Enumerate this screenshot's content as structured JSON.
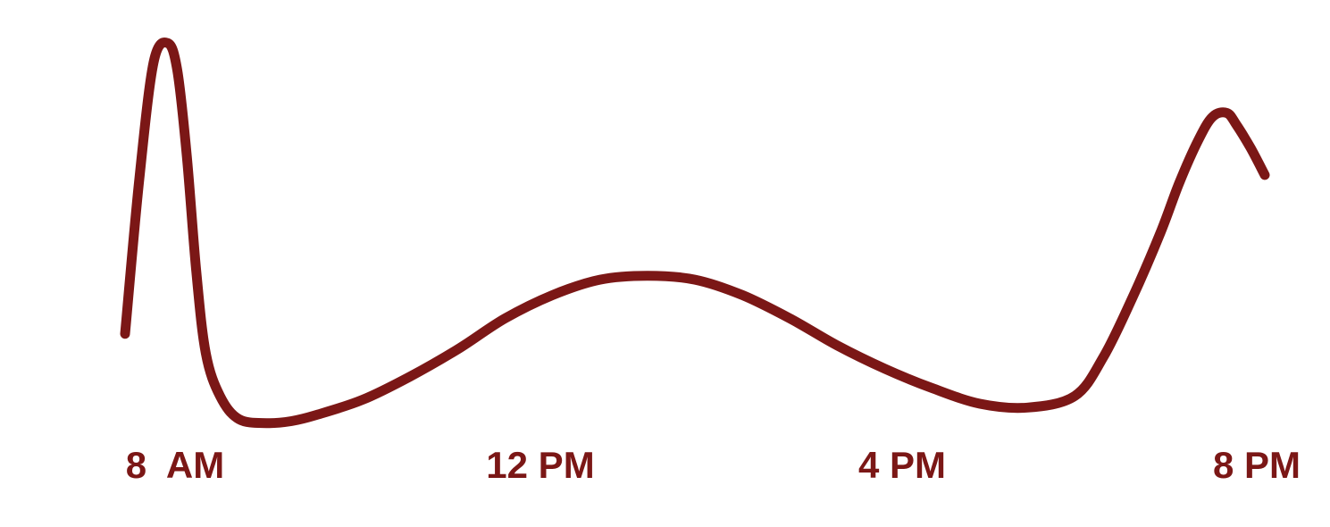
{
  "chart_data": {
    "type": "line",
    "title": "",
    "xlabel": "",
    "ylabel": "",
    "x_ticks": [
      "8  AM",
      "12 PM",
      "4 PM",
      "8 PM"
    ],
    "x_range_hours": [
      8,
      20
    ],
    "y_range": [
      0,
      100
    ],
    "grid": false,
    "legend": "none",
    "series": [
      {
        "x": [
          8.0,
          8.15,
          8.3,
          8.45,
          8.55,
          8.65,
          8.75,
          8.85,
          9.0,
          9.2,
          9.5,
          9.75,
          10.0,
          10.5,
          11.0,
          11.5,
          12.0,
          12.5,
          13.0,
          13.5,
          14.0,
          14.5,
          15.0,
          15.5,
          16.0,
          16.5,
          17.0,
          17.5,
          18.0,
          18.3,
          18.6,
          18.9,
          19.1,
          19.3,
          19.45,
          19.6,
          19.7,
          19.85,
          20.0
        ],
        "y": [
          24,
          64,
          94,
          99,
          92,
          70,
          40,
          19,
          8,
          2,
          1,
          1.5,
          3,
          7,
          13,
          20,
          28,
          34,
          38,
          39,
          38,
          34,
          28,
          21,
          15,
          10,
          6,
          5,
          8,
          18,
          33,
          50,
          63,
          74,
          80,
          81,
          78,
          72,
          65
        ]
      }
    ],
    "colors": {
      "line": "#7b1716",
      "tick_text": "#7b1716",
      "background": "#ffffff"
    }
  }
}
